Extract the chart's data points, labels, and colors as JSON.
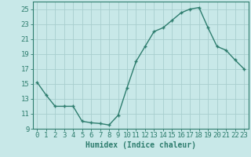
{
  "x": [
    0,
    1,
    2,
    3,
    4,
    5,
    6,
    7,
    8,
    9,
    10,
    11,
    12,
    13,
    14,
    15,
    16,
    17,
    18,
    19,
    20,
    21,
    22,
    23
  ],
  "y": [
    15.2,
    13.5,
    12.0,
    12.0,
    12.0,
    10.0,
    9.8,
    9.7,
    9.5,
    10.8,
    14.5,
    18.0,
    20.0,
    22.0,
    22.5,
    23.5,
    24.5,
    25.0,
    25.2,
    22.5,
    20.0,
    19.5,
    18.2,
    17.0
  ],
  "line_color": "#2e7d6e",
  "marker": "+",
  "marker_size": 3.5,
  "background_color": "#c8e8e8",
  "grid_color": "#a8cece",
  "xlabel": "Humidex (Indice chaleur)",
  "ylim": [
    9,
    26
  ],
  "xlim": [
    -0.5,
    23.5
  ],
  "yticks": [
    9,
    11,
    13,
    15,
    17,
    19,
    21,
    23,
    25
  ],
  "xticks": [
    0,
    1,
    2,
    3,
    4,
    5,
    6,
    7,
    8,
    9,
    10,
    11,
    12,
    13,
    14,
    15,
    16,
    17,
    18,
    19,
    20,
    21,
    22,
    23
  ],
  "tick_color": "#2e7d6e",
  "label_color": "#2e7d6e",
  "spine_color": "#2e7d6e",
  "xlabel_fontsize": 7,
  "tick_fontsize": 6.5,
  "line_width": 1.0,
  "markeredgewidth": 1.0
}
